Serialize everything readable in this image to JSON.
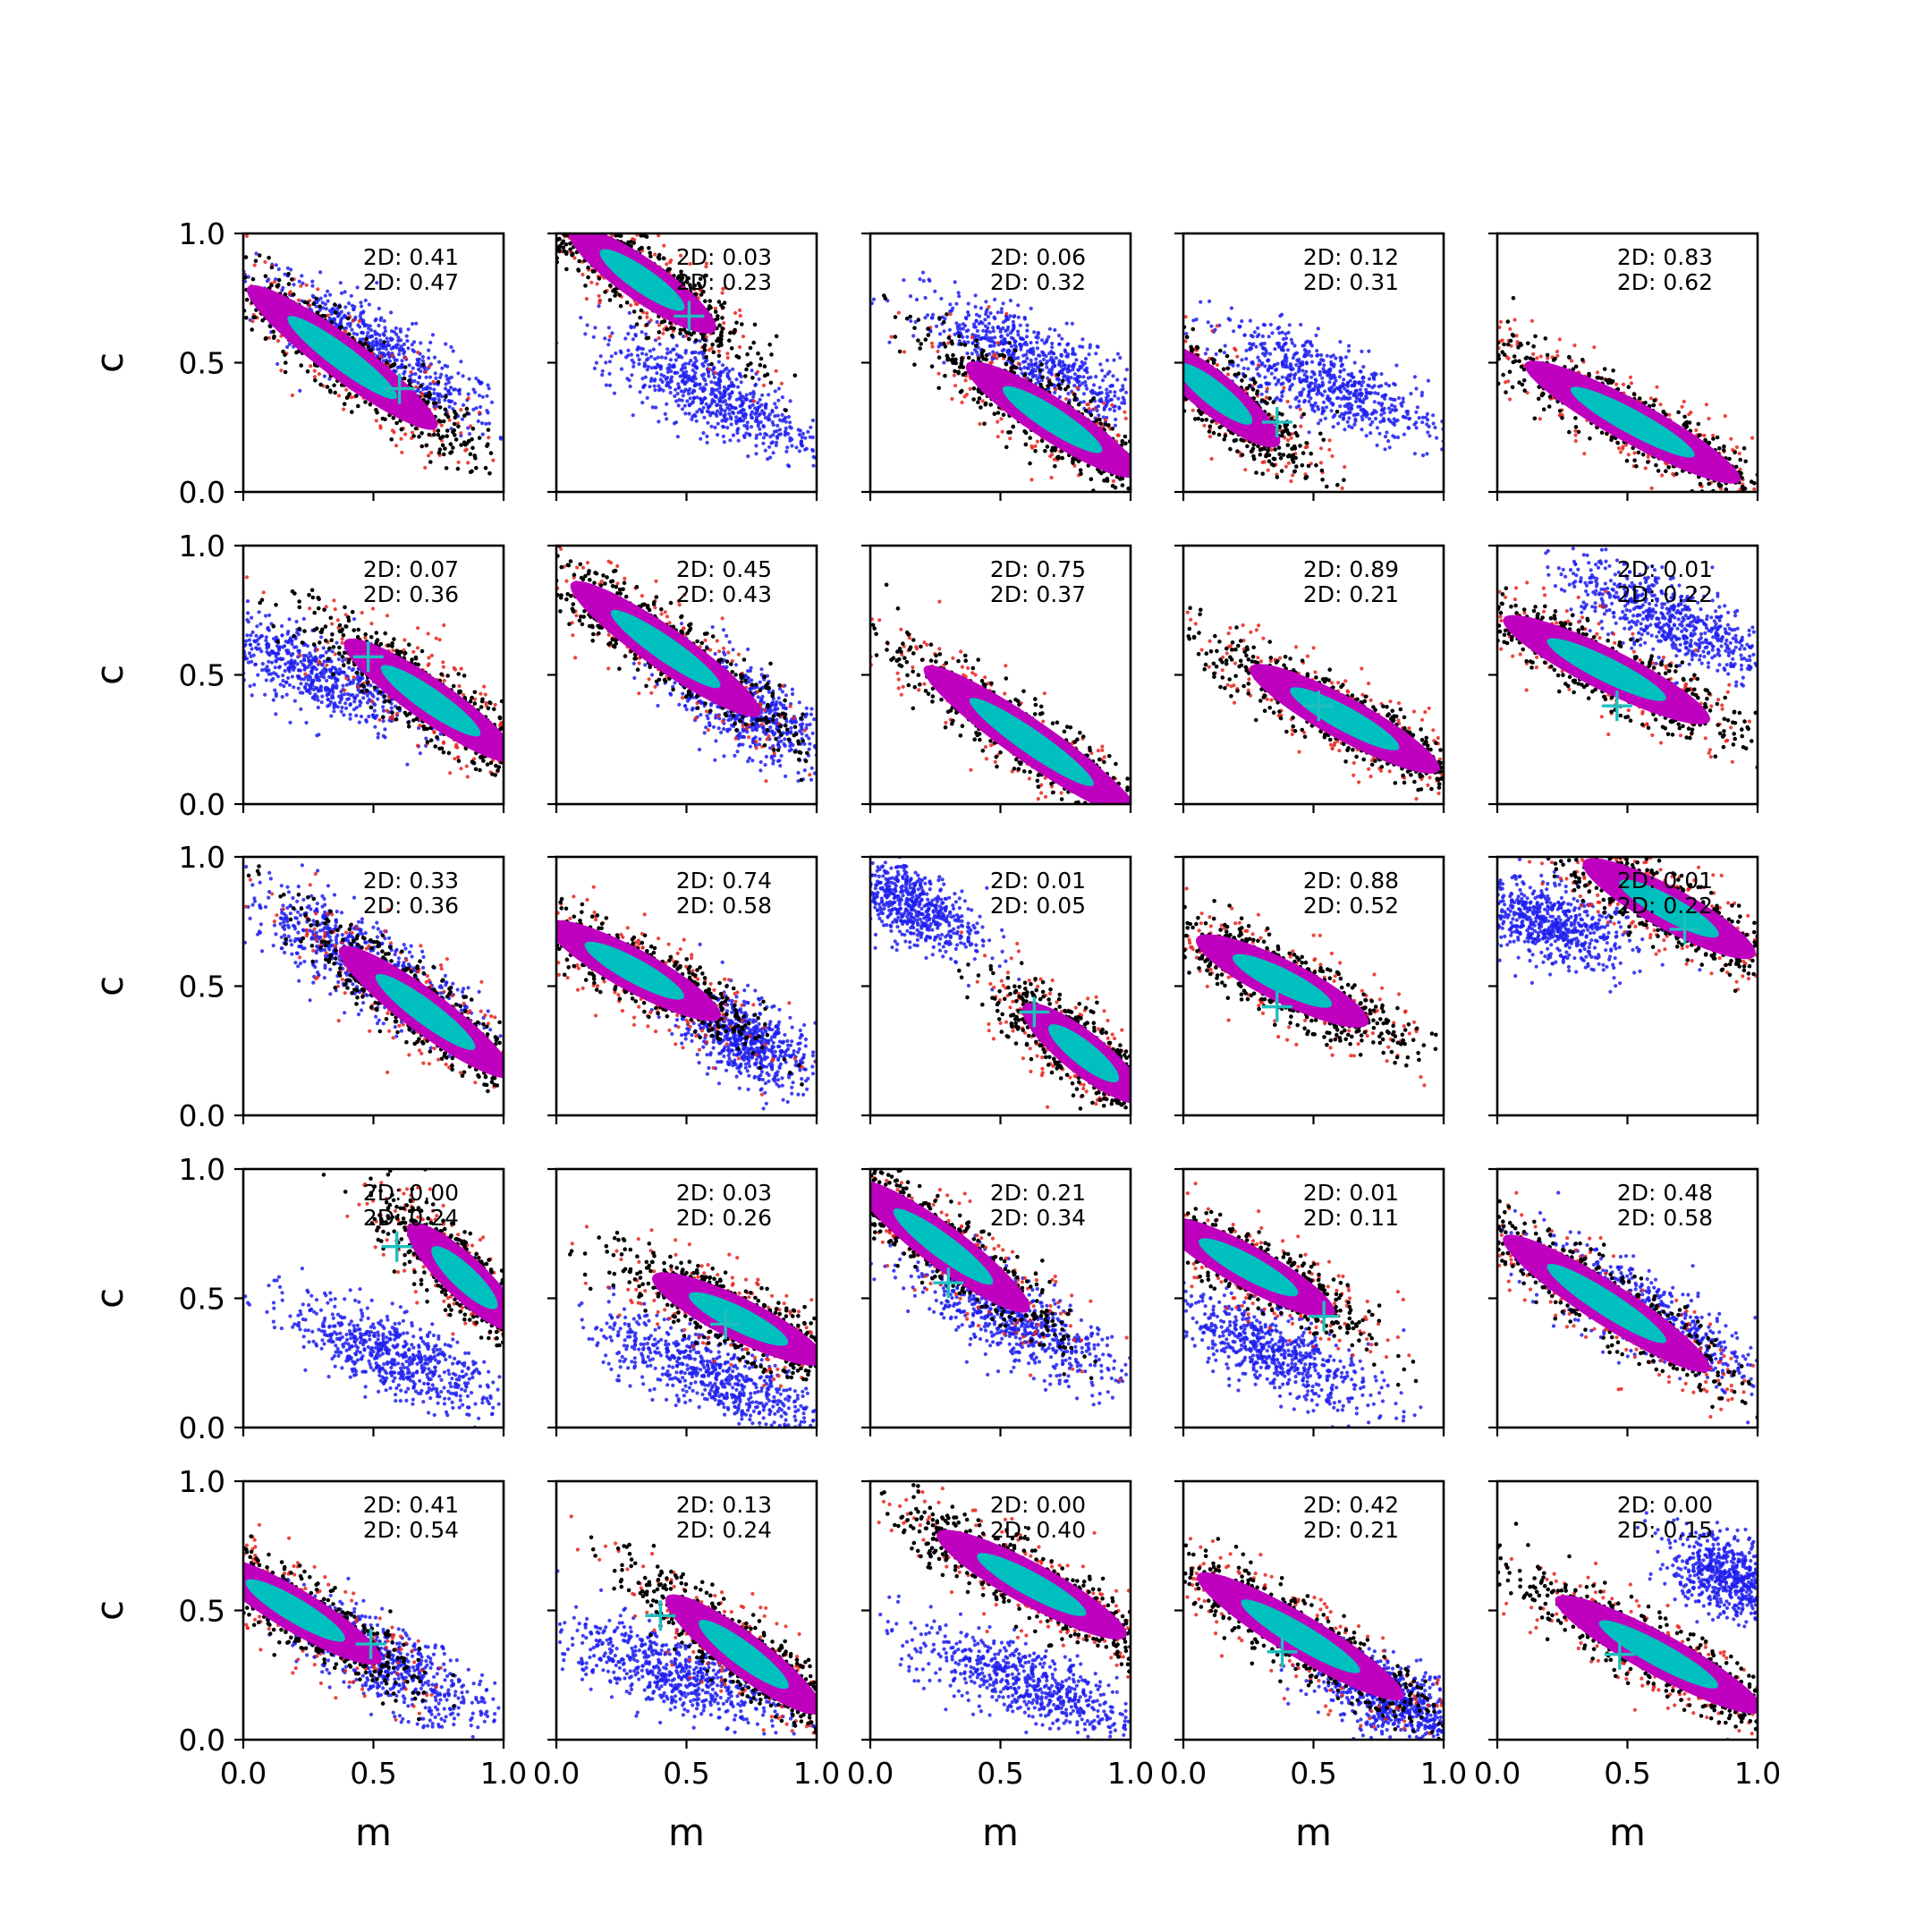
{
  "chart_data": {
    "type": "scatter",
    "layout": "5x5 grid of panels",
    "xlabel": "m",
    "ylabel": "c",
    "xlim": [
      0,
      1
    ],
    "ylim": [
      0,
      1
    ],
    "x_ticks": [
      "0.0",
      "0.5",
      "1.0"
    ],
    "y_ticks": [
      "0.0",
      "0.5",
      "1.0"
    ],
    "grid": false,
    "colors": {
      "outer_sample": "#e8251c",
      "sample_edge": "#000000",
      "sample_body": "#bf00bf",
      "sample_core": "#00bfbf",
      "reference_sample": "#1f1fee",
      "true_marker": "#1fbfbf"
    },
    "panels": [
      {
        "row": 0,
        "col": 0,
        "ann": [
          "2D: 0.41",
          "2D: 0.47"
        ],
        "main": {
          "center": [
            0.38,
            0.52
          ],
          "slope": -0.75,
          "spread_x": 0.22
        },
        "ref": {
          "center": [
            0.5,
            0.55
          ],
          "slope": -0.6,
          "spread_x": 0.24
        },
        "marker": [
          0.6,
          0.4
        ]
      },
      {
        "row": 0,
        "col": 1,
        "ann": [
          "2D: 0.03",
          "2D: 0.23"
        ],
        "main": {
          "center": [
            0.33,
            0.82
          ],
          "slope": -0.7,
          "spread_x": 0.17
        },
        "ref": {
          "center": [
            0.6,
            0.38
          ],
          "slope": -0.5,
          "spread_x": 0.2
        },
        "marker": [
          0.51,
          0.68
        ]
      },
      {
        "row": 0,
        "col": 2,
        "ann": [
          "2D: 0.06",
          "2D: 0.32"
        ],
        "main": {
          "center": [
            0.7,
            0.28
          ],
          "slope": -0.65,
          "spread_x": 0.2
        },
        "ref": {
          "center": [
            0.65,
            0.5
          ],
          "slope": -0.5,
          "spread_x": 0.22
        },
        "marker": null
      },
      {
        "row": 0,
        "col": 3,
        "ann": [
          "2D: 0.12",
          "2D: 0.31"
        ],
        "main": {
          "center": [
            0.12,
            0.38
          ],
          "slope": -0.8,
          "spread_x": 0.15
        },
        "ref": {
          "center": [
            0.55,
            0.42
          ],
          "slope": -0.45,
          "spread_x": 0.22
        },
        "marker": [
          0.36,
          0.27
        ]
      },
      {
        "row": 0,
        "col": 4,
        "ann": [
          "2D: 0.83",
          "2D: 0.62"
        ],
        "main": {
          "center": [
            0.52,
            0.27
          ],
          "slope": -0.55,
          "spread_x": 0.25
        },
        "ref": null,
        "marker": null
      },
      {
        "row": 1,
        "col": 0,
        "ann": [
          "2D: 0.07",
          "2D: 0.36"
        ],
        "main": {
          "center": [
            0.72,
            0.4
          ],
          "slope": -0.7,
          "spread_x": 0.2
        },
        "ref": {
          "center": [
            0.25,
            0.52
          ],
          "slope": -0.45,
          "spread_x": 0.2
        },
        "marker": [
          0.48,
          0.57
        ]
      },
      {
        "row": 1,
        "col": 1,
        "ann": [
          "2D: 0.45",
          "2D: 0.43"
        ],
        "main": {
          "center": [
            0.42,
            0.6
          ],
          "slope": -0.7,
          "spread_x": 0.22
        },
        "ref": {
          "center": [
            0.72,
            0.38
          ],
          "slope": -0.6,
          "spread_x": 0.15
        },
        "marker": null
      },
      {
        "row": 1,
        "col": 2,
        "ann": [
          "2D: 0.75",
          "2D: 0.37"
        ],
        "main": {
          "center": [
            0.62,
            0.24
          ],
          "slope": -0.7,
          "spread_x": 0.25
        },
        "ref": null,
        "marker": null
      },
      {
        "row": 1,
        "col": 3,
        "ann": [
          "2D: 0.89",
          "2D: 0.21"
        ],
        "main": {
          "center": [
            0.62,
            0.33
          ],
          "slope": -0.55,
          "spread_x": 0.22
        },
        "ref": null,
        "marker": [
          0.52,
          0.38
        ]
      },
      {
        "row": 1,
        "col": 4,
        "ann": [
          "2D: 0.01",
          "2D: 0.22"
        ],
        "main": {
          "center": [
            0.42,
            0.52
          ],
          "slope": -0.5,
          "spread_x": 0.24
        },
        "ref": {
          "center": [
            0.65,
            0.72
          ],
          "slope": -0.45,
          "spread_x": 0.2
        },
        "marker": [
          0.46,
          0.38
        ]
      },
      {
        "row": 2,
        "col": 0,
        "ann": [
          "2D: 0.33",
          "2D: 0.36"
        ],
        "main": {
          "center": [
            0.7,
            0.4
          ],
          "slope": -0.75,
          "spread_x": 0.2
        },
        "ref": {
          "center": [
            0.45,
            0.6
          ],
          "slope": -0.6,
          "spread_x": 0.22
        },
        "marker": null
      },
      {
        "row": 2,
        "col": 1,
        "ann": [
          "2D: 0.74",
          "2D: 0.58"
        ],
        "main": {
          "center": [
            0.3,
            0.56
          ],
          "slope": -0.55,
          "spread_x": 0.2
        },
        "ref": {
          "center": [
            0.72,
            0.3
          ],
          "slope": -0.6,
          "spread_x": 0.12
        },
        "marker": null
      },
      {
        "row": 2,
        "col": 2,
        "ann": [
          "2D: 0.01",
          "2D: 0.05"
        ],
        "main": {
          "center": [
            0.82,
            0.24
          ],
          "slope": -0.8,
          "spread_x": 0.14
        },
        "ref": {
          "center": [
            0.14,
            0.82
          ],
          "slope": -0.5,
          "spread_x": 0.14
        },
        "marker": [
          0.63,
          0.4
        ]
      },
      {
        "row": 2,
        "col": 3,
        "ann": [
          "2D: 0.88",
          "2D: 0.52"
        ],
        "main": {
          "center": [
            0.38,
            0.52
          ],
          "slope": -0.5,
          "spread_x": 0.2
        },
        "ref": null,
        "marker": [
          0.36,
          0.42
        ]
      },
      {
        "row": 2,
        "col": 4,
        "ann": [
          "2D: 0.01",
          "2D: 0.22"
        ],
        "main": {
          "center": [
            0.66,
            0.8
          ],
          "slope": -0.55,
          "spread_x": 0.2
        },
        "ref": {
          "center": [
            0.2,
            0.74
          ],
          "slope": -0.35,
          "spread_x": 0.16
        },
        "marker": [
          0.72,
          0.72
        ]
      },
      {
        "row": 3,
        "col": 0,
        "ann": [
          "2D: 0.00",
          "2D: 0.24"
        ],
        "main": {
          "center": [
            0.85,
            0.58
          ],
          "slope": -0.95,
          "spread_x": 0.13
        },
        "ref": {
          "center": [
            0.58,
            0.28
          ],
          "slope": -0.45,
          "spread_x": 0.2
        },
        "marker": [
          0.59,
          0.7
        ]
      },
      {
        "row": 3,
        "col": 1,
        "ann": [
          "2D: 0.03",
          "2D: 0.26"
        ],
        "main": {
          "center": [
            0.7,
            0.42
          ],
          "slope": -0.5,
          "spread_x": 0.2
        },
        "ref": {
          "center": [
            0.6,
            0.2
          ],
          "slope": -0.45,
          "spread_x": 0.22
        },
        "marker": [
          0.65,
          0.4
        ]
      },
      {
        "row": 3,
        "col": 2,
        "ann": [
          "2D: 0.21",
          "2D: 0.34"
        ],
        "main": {
          "center": [
            0.28,
            0.7
          ],
          "slope": -0.75,
          "spread_x": 0.2
        },
        "ref": {
          "center": [
            0.55,
            0.42
          ],
          "slope": -0.55,
          "spread_x": 0.2
        },
        "marker": [
          0.3,
          0.56
        ]
      },
      {
        "row": 3,
        "col": 3,
        "ann": [
          "2D: 0.01",
          "2D: 0.11"
        ],
        "main": {
          "center": [
            0.25,
            0.62
          ],
          "slope": -0.55,
          "spread_x": 0.2
        },
        "ref": {
          "center": [
            0.33,
            0.3
          ],
          "slope": -0.5,
          "spread_x": 0.2
        },
        "marker": [
          0.54,
          0.43
        ]
      },
      {
        "row": 3,
        "col": 4,
        "ann": [
          "2D: 0.48",
          "2D: 0.58"
        ],
        "main": {
          "center": [
            0.42,
            0.48
          ],
          "slope": -0.65,
          "spread_x": 0.24
        },
        "ref": {
          "center": [
            0.55,
            0.45
          ],
          "slope": -0.55,
          "spread_x": 0.22
        },
        "marker": null
      },
      {
        "row": 4,
        "col": 0,
        "ann": [
          "2D: 0.41",
          "2D: 0.54"
        ],
        "main": {
          "center": [
            0.2,
            0.5
          ],
          "slope": -0.6,
          "spread_x": 0.2
        },
        "ref": {
          "center": [
            0.55,
            0.3
          ],
          "slope": -0.55,
          "spread_x": 0.2
        },
        "marker": [
          0.49,
          0.37
        ]
      },
      {
        "row": 4,
        "col": 1,
        "ann": [
          "2D: 0.13",
          "2D: 0.24"
        ],
        "main": {
          "center": [
            0.72,
            0.33
          ],
          "slope": -0.75,
          "spread_x": 0.18
        },
        "ref": {
          "center": [
            0.45,
            0.26
          ],
          "slope": -0.35,
          "spread_x": 0.22
        },
        "marker": [
          0.4,
          0.48
        ]
      },
      {
        "row": 4,
        "col": 2,
        "ann": [
          "2D: 0.00",
          "2D: 0.40"
        ],
        "main": {
          "center": [
            0.62,
            0.6
          ],
          "slope": -0.55,
          "spread_x": 0.22
        },
        "ref": {
          "center": [
            0.6,
            0.22
          ],
          "slope": -0.4,
          "spread_x": 0.22
        },
        "marker": null
      },
      {
        "row": 4,
        "col": 3,
        "ann": [
          "2D: 0.42",
          "2D: 0.21"
        ],
        "main": {
          "center": [
            0.45,
            0.4
          ],
          "slope": -0.6,
          "spread_x": 0.24
        },
        "ref": {
          "center": [
            0.8,
            0.15
          ],
          "slope": -0.5,
          "spread_x": 0.14
        },
        "marker": [
          0.38,
          0.34
        ]
      },
      {
        "row": 4,
        "col": 4,
        "ann": [
          "2D: 0.00",
          "2D: 0.15"
        ],
        "main": {
          "center": [
            0.62,
            0.33
          ],
          "slope": -0.55,
          "spread_x": 0.24
        },
        "ref": {
          "center": [
            0.9,
            0.62
          ],
          "slope": -0.5,
          "spread_x": 0.12
        },
        "marker": [
          0.47,
          0.33
        ]
      }
    ]
  }
}
